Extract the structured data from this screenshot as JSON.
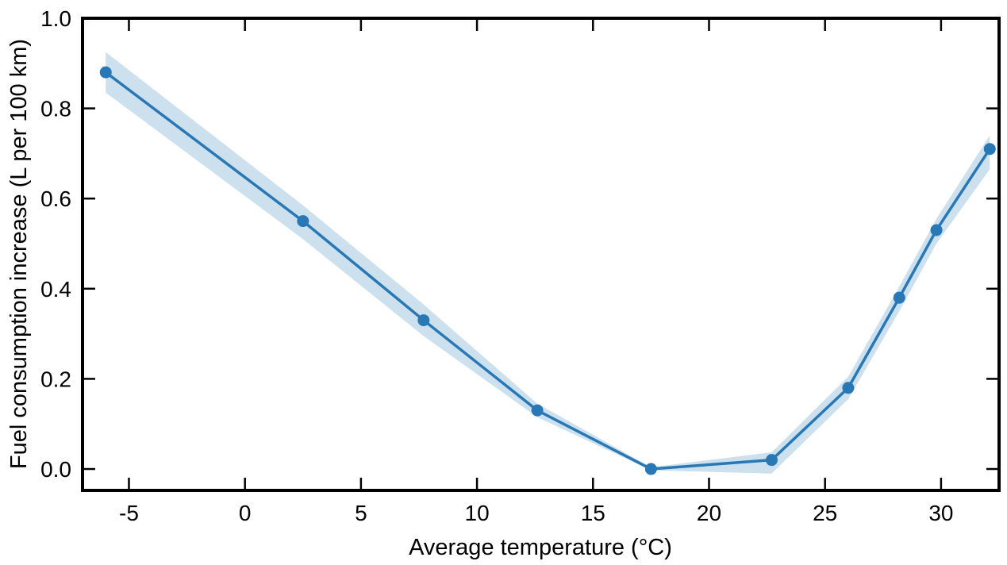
{
  "chart_data": {
    "type": "line",
    "title": "",
    "xlabel": "Average temperature (°C)",
    "ylabel": "Fuel consumption increase (L per 100 km)",
    "x": [
      -6.0,
      2.5,
      7.7,
      12.6,
      17.5,
      22.7,
      26.0,
      28.2,
      29.8,
      32.1
    ],
    "y": [
      0.88,
      0.55,
      0.33,
      0.13,
      0.0,
      0.02,
      0.18,
      0.38,
      0.53,
      0.71
    ],
    "band_lower": [
      0.835,
      0.51,
      0.295,
      0.115,
      -0.003,
      -0.01,
      0.155,
      0.35,
      0.5,
      0.665
    ],
    "band_upper": [
      0.925,
      0.585,
      0.365,
      0.145,
      0.004,
      0.037,
      0.205,
      0.405,
      0.555,
      0.74
    ],
    "xlim": [
      -7,
      32.5
    ],
    "ylim": [
      -0.0475,
      1.0
    ],
    "x_ticks": [
      -5,
      0,
      5,
      10,
      15,
      20,
      25,
      30
    ],
    "y_ticks": [
      0.0,
      0.2,
      0.4,
      0.6,
      0.8,
      1.0
    ],
    "grid": "off",
    "legend": "none",
    "colors": {
      "line": "#2878b5",
      "marker": "#2878b5",
      "band": "#cde0ee",
      "axis": "#000000",
      "background": "#ffffff"
    }
  }
}
